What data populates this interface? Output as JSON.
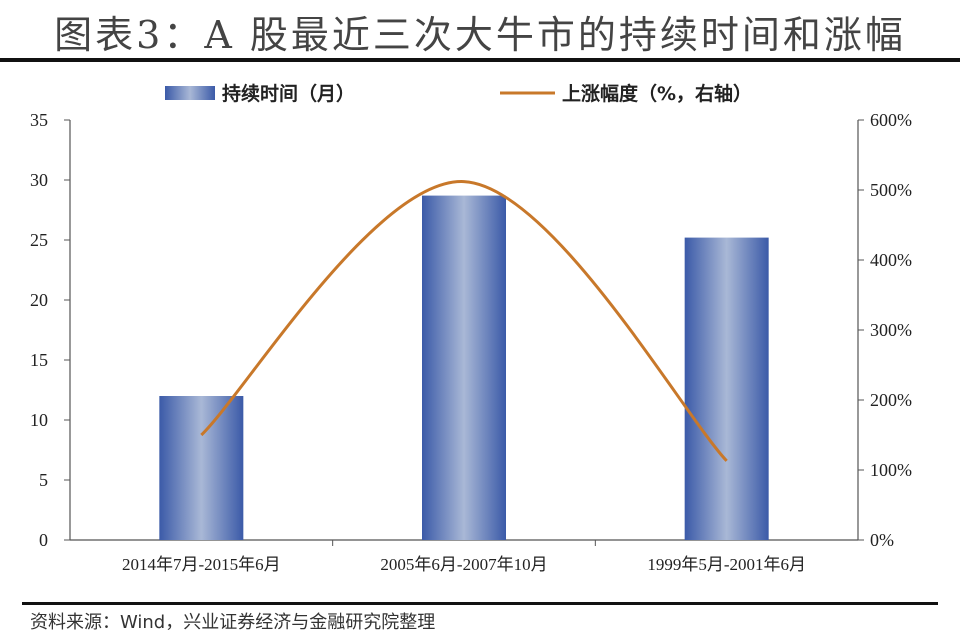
{
  "title": "图表3：A 股最近三次大牛市的持续时间和涨幅",
  "source": "资料来源：Wind，兴业证券经济与金融研究院整理",
  "chart_data": {
    "type": "bar",
    "categories": [
      "2014年7月-2015年6月",
      "2005年6月-2007年10月",
      "1999年5月-2001年6月"
    ],
    "series": [
      {
        "name": "持续时间（月）",
        "type": "bar",
        "axis": "left",
        "values": [
          12,
          28.7,
          25.2
        ],
        "color": "#4a69b8"
      },
      {
        "name": "上涨幅度（%，右轴）",
        "type": "line",
        "axis": "right",
        "values": [
          150,
          512,
          113
        ],
        "color": "#c8782a"
      }
    ],
    "y_left": {
      "ylim": [
        0,
        35
      ],
      "ticks": [
        "0",
        "5",
        "10",
        "15",
        "20",
        "25",
        "30",
        "35"
      ]
    },
    "y_right": {
      "ylim": [
        0,
        600
      ],
      "ticks": [
        "0%",
        "100%",
        "200%",
        "300%",
        "400%",
        "500%",
        "600%"
      ]
    },
    "legend": "top",
    "grid": false
  }
}
